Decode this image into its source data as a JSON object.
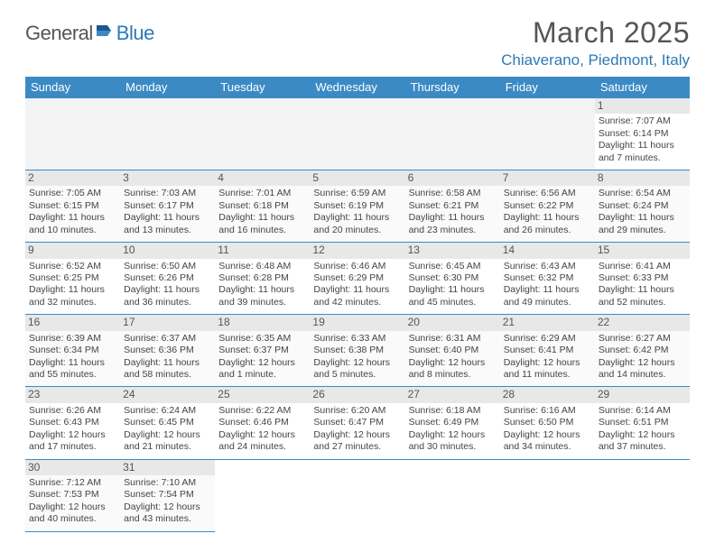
{
  "logo": {
    "text1": "General",
    "text2": "Blue"
  },
  "title": "March 2025",
  "location": "Chiaverano, Piedmont, Italy",
  "colors": {
    "header_bg": "#3b8ac4",
    "header_text": "#ffffff",
    "link_blue": "#2b7ab8",
    "daynum_bg": "#e8e8e8",
    "border": "#3b8ac4",
    "text": "#444444"
  },
  "weekdays": [
    "Sunday",
    "Monday",
    "Tuesday",
    "Wednesday",
    "Thursday",
    "Friday",
    "Saturday"
  ],
  "weeks": [
    [
      null,
      null,
      null,
      null,
      null,
      null,
      {
        "n": "1",
        "sr": "Sunrise: 7:07 AM",
        "ss": "Sunset: 6:14 PM",
        "dl": "Daylight: 11 hours and 7 minutes."
      }
    ],
    [
      {
        "n": "2",
        "sr": "Sunrise: 7:05 AM",
        "ss": "Sunset: 6:15 PM",
        "dl": "Daylight: 11 hours and 10 minutes."
      },
      {
        "n": "3",
        "sr": "Sunrise: 7:03 AM",
        "ss": "Sunset: 6:17 PM",
        "dl": "Daylight: 11 hours and 13 minutes."
      },
      {
        "n": "4",
        "sr": "Sunrise: 7:01 AM",
        "ss": "Sunset: 6:18 PM",
        "dl": "Daylight: 11 hours and 16 minutes."
      },
      {
        "n": "5",
        "sr": "Sunrise: 6:59 AM",
        "ss": "Sunset: 6:19 PM",
        "dl": "Daylight: 11 hours and 20 minutes."
      },
      {
        "n": "6",
        "sr": "Sunrise: 6:58 AM",
        "ss": "Sunset: 6:21 PM",
        "dl": "Daylight: 11 hours and 23 minutes."
      },
      {
        "n": "7",
        "sr": "Sunrise: 6:56 AM",
        "ss": "Sunset: 6:22 PM",
        "dl": "Daylight: 11 hours and 26 minutes."
      },
      {
        "n": "8",
        "sr": "Sunrise: 6:54 AM",
        "ss": "Sunset: 6:24 PM",
        "dl": "Daylight: 11 hours and 29 minutes."
      }
    ],
    [
      {
        "n": "9",
        "sr": "Sunrise: 6:52 AM",
        "ss": "Sunset: 6:25 PM",
        "dl": "Daylight: 11 hours and 32 minutes."
      },
      {
        "n": "10",
        "sr": "Sunrise: 6:50 AM",
        "ss": "Sunset: 6:26 PM",
        "dl": "Daylight: 11 hours and 36 minutes."
      },
      {
        "n": "11",
        "sr": "Sunrise: 6:48 AM",
        "ss": "Sunset: 6:28 PM",
        "dl": "Daylight: 11 hours and 39 minutes."
      },
      {
        "n": "12",
        "sr": "Sunrise: 6:46 AM",
        "ss": "Sunset: 6:29 PM",
        "dl": "Daylight: 11 hours and 42 minutes."
      },
      {
        "n": "13",
        "sr": "Sunrise: 6:45 AM",
        "ss": "Sunset: 6:30 PM",
        "dl": "Daylight: 11 hours and 45 minutes."
      },
      {
        "n": "14",
        "sr": "Sunrise: 6:43 AM",
        "ss": "Sunset: 6:32 PM",
        "dl": "Daylight: 11 hours and 49 minutes."
      },
      {
        "n": "15",
        "sr": "Sunrise: 6:41 AM",
        "ss": "Sunset: 6:33 PM",
        "dl": "Daylight: 11 hours and 52 minutes."
      }
    ],
    [
      {
        "n": "16",
        "sr": "Sunrise: 6:39 AM",
        "ss": "Sunset: 6:34 PM",
        "dl": "Daylight: 11 hours and 55 minutes."
      },
      {
        "n": "17",
        "sr": "Sunrise: 6:37 AM",
        "ss": "Sunset: 6:36 PM",
        "dl": "Daylight: 11 hours and 58 minutes."
      },
      {
        "n": "18",
        "sr": "Sunrise: 6:35 AM",
        "ss": "Sunset: 6:37 PM",
        "dl": "Daylight: 12 hours and 1 minute."
      },
      {
        "n": "19",
        "sr": "Sunrise: 6:33 AM",
        "ss": "Sunset: 6:38 PM",
        "dl": "Daylight: 12 hours and 5 minutes."
      },
      {
        "n": "20",
        "sr": "Sunrise: 6:31 AM",
        "ss": "Sunset: 6:40 PM",
        "dl": "Daylight: 12 hours and 8 minutes."
      },
      {
        "n": "21",
        "sr": "Sunrise: 6:29 AM",
        "ss": "Sunset: 6:41 PM",
        "dl": "Daylight: 12 hours and 11 minutes."
      },
      {
        "n": "22",
        "sr": "Sunrise: 6:27 AM",
        "ss": "Sunset: 6:42 PM",
        "dl": "Daylight: 12 hours and 14 minutes."
      }
    ],
    [
      {
        "n": "23",
        "sr": "Sunrise: 6:26 AM",
        "ss": "Sunset: 6:43 PM",
        "dl": "Daylight: 12 hours and 17 minutes."
      },
      {
        "n": "24",
        "sr": "Sunrise: 6:24 AM",
        "ss": "Sunset: 6:45 PM",
        "dl": "Daylight: 12 hours and 21 minutes."
      },
      {
        "n": "25",
        "sr": "Sunrise: 6:22 AM",
        "ss": "Sunset: 6:46 PM",
        "dl": "Daylight: 12 hours and 24 minutes."
      },
      {
        "n": "26",
        "sr": "Sunrise: 6:20 AM",
        "ss": "Sunset: 6:47 PM",
        "dl": "Daylight: 12 hours and 27 minutes."
      },
      {
        "n": "27",
        "sr": "Sunrise: 6:18 AM",
        "ss": "Sunset: 6:49 PM",
        "dl": "Daylight: 12 hours and 30 minutes."
      },
      {
        "n": "28",
        "sr": "Sunrise: 6:16 AM",
        "ss": "Sunset: 6:50 PM",
        "dl": "Daylight: 12 hours and 34 minutes."
      },
      {
        "n": "29",
        "sr": "Sunrise: 6:14 AM",
        "ss": "Sunset: 6:51 PM",
        "dl": "Daylight: 12 hours and 37 minutes."
      }
    ],
    [
      {
        "n": "30",
        "sr": "Sunrise: 7:12 AM",
        "ss": "Sunset: 7:53 PM",
        "dl": "Daylight: 12 hours and 40 minutes."
      },
      {
        "n": "31",
        "sr": "Sunrise: 7:10 AM",
        "ss": "Sunset: 7:54 PM",
        "dl": "Daylight: 12 hours and 43 minutes."
      },
      null,
      null,
      null,
      null,
      null
    ]
  ]
}
